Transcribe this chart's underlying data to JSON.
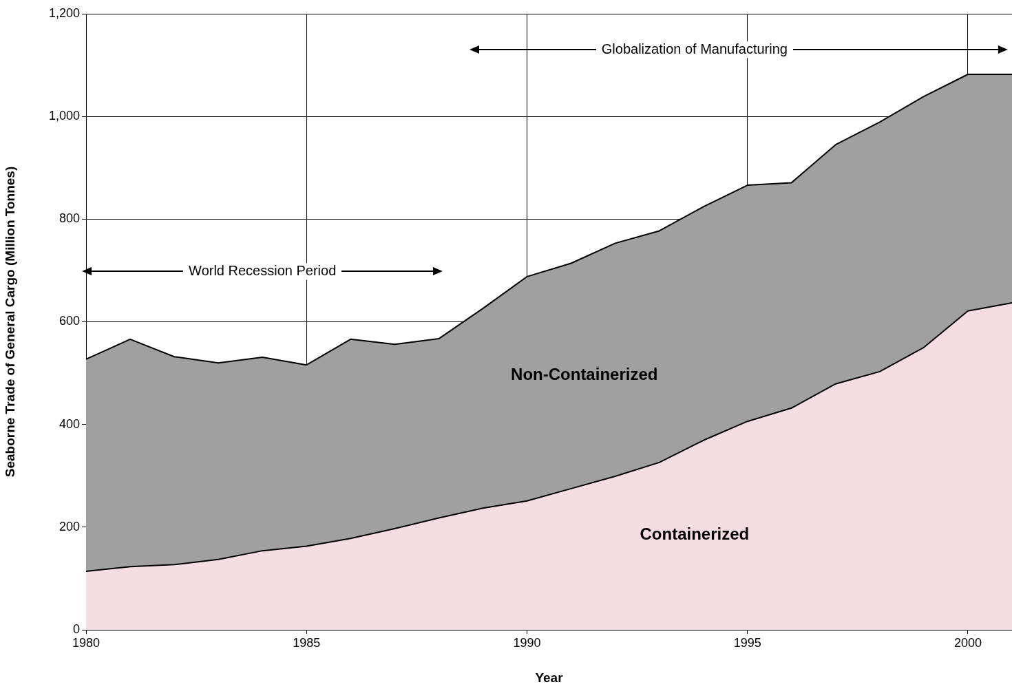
{
  "chart_data": {
    "type": "area",
    "stacked": true,
    "xlabel": "Year",
    "ylabel": "Seaborne Trade of General Cargo (Million Tonnes)",
    "x": [
      1980,
      1981,
      1982,
      1983,
      1984,
      1985,
      1986,
      1987,
      1988,
      1989,
      1990,
      1991,
      1992,
      1993,
      1994,
      1995,
      1996,
      1997,
      1998,
      1999,
      2000,
      2001
    ],
    "series": [
      {
        "name": "Containerized",
        "color": "#f6dde4",
        "values": [
          114,
          123,
          127,
          137,
          154,
          163,
          178,
          197,
          218,
          237,
          251,
          275,
          299,
          326,
          369,
          406,
          432,
          479,
          503,
          550,
          621,
          637
        ]
      },
      {
        "name": "Non-Containerized",
        "color": "#a0a0a0",
        "values": [
          413,
          443,
          405,
          383,
          377,
          353,
          388,
          359,
          349,
          389,
          437,
          439,
          454,
          451,
          455,
          460,
          439,
          466,
          486,
          489,
          461,
          445
        ]
      }
    ],
    "xlim": [
      1980,
      2001
    ],
    "xticks": [
      1980,
      1985,
      1990,
      1995,
      2000
    ],
    "ylim": [
      0,
      1200
    ],
    "yticks": [
      0,
      200,
      400,
      600,
      800,
      {
        "value": 1000,
        "label": "1,000"
      },
      {
        "value": 1200,
        "label": "1,200"
      }
    ],
    "grid": true,
    "legend": false,
    "annotations": [
      "World Recession Period",
      "Globalization of Manufacturing"
    ]
  }
}
